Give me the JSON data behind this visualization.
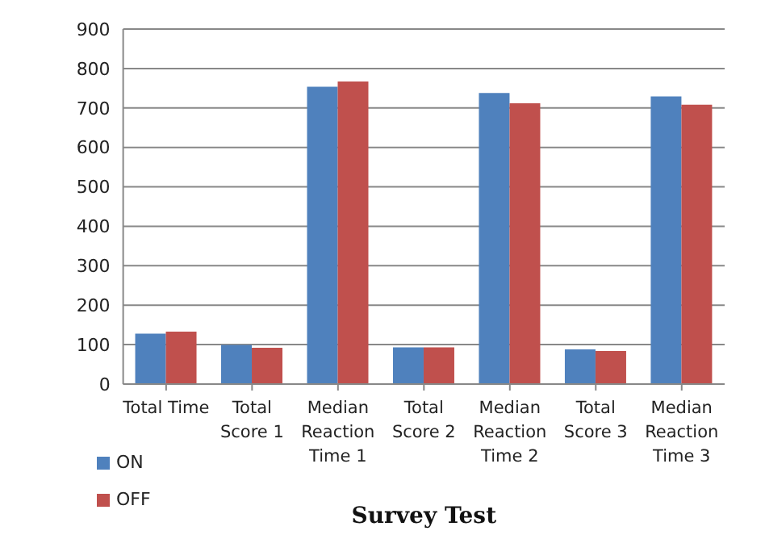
{
  "chart_data": {
    "type": "bar",
    "xlabel": "Survey Test",
    "categories": [
      "Total Time",
      "Total Score 1",
      "Median Reaction Time 1",
      "Total Score 2",
      "Median Reaction Time 2",
      "Total Score 3",
      "Median Reaction Time 3"
    ],
    "series": [
      {
        "name": "ON",
        "color": "#4f81bd",
        "values": [
          128,
          99,
          754,
          93,
          738,
          88,
          729
        ]
      },
      {
        "name": "OFF",
        "color": "#c0504d",
        "values": [
          133,
          92,
          767,
          93,
          712,
          84,
          708
        ]
      }
    ],
    "ylim": [
      0,
      900
    ],
    "yticks": [
      0,
      100,
      200,
      300,
      400,
      500,
      600,
      700,
      800,
      900
    ],
    "grid": "y",
    "legend": "bottom left"
  }
}
